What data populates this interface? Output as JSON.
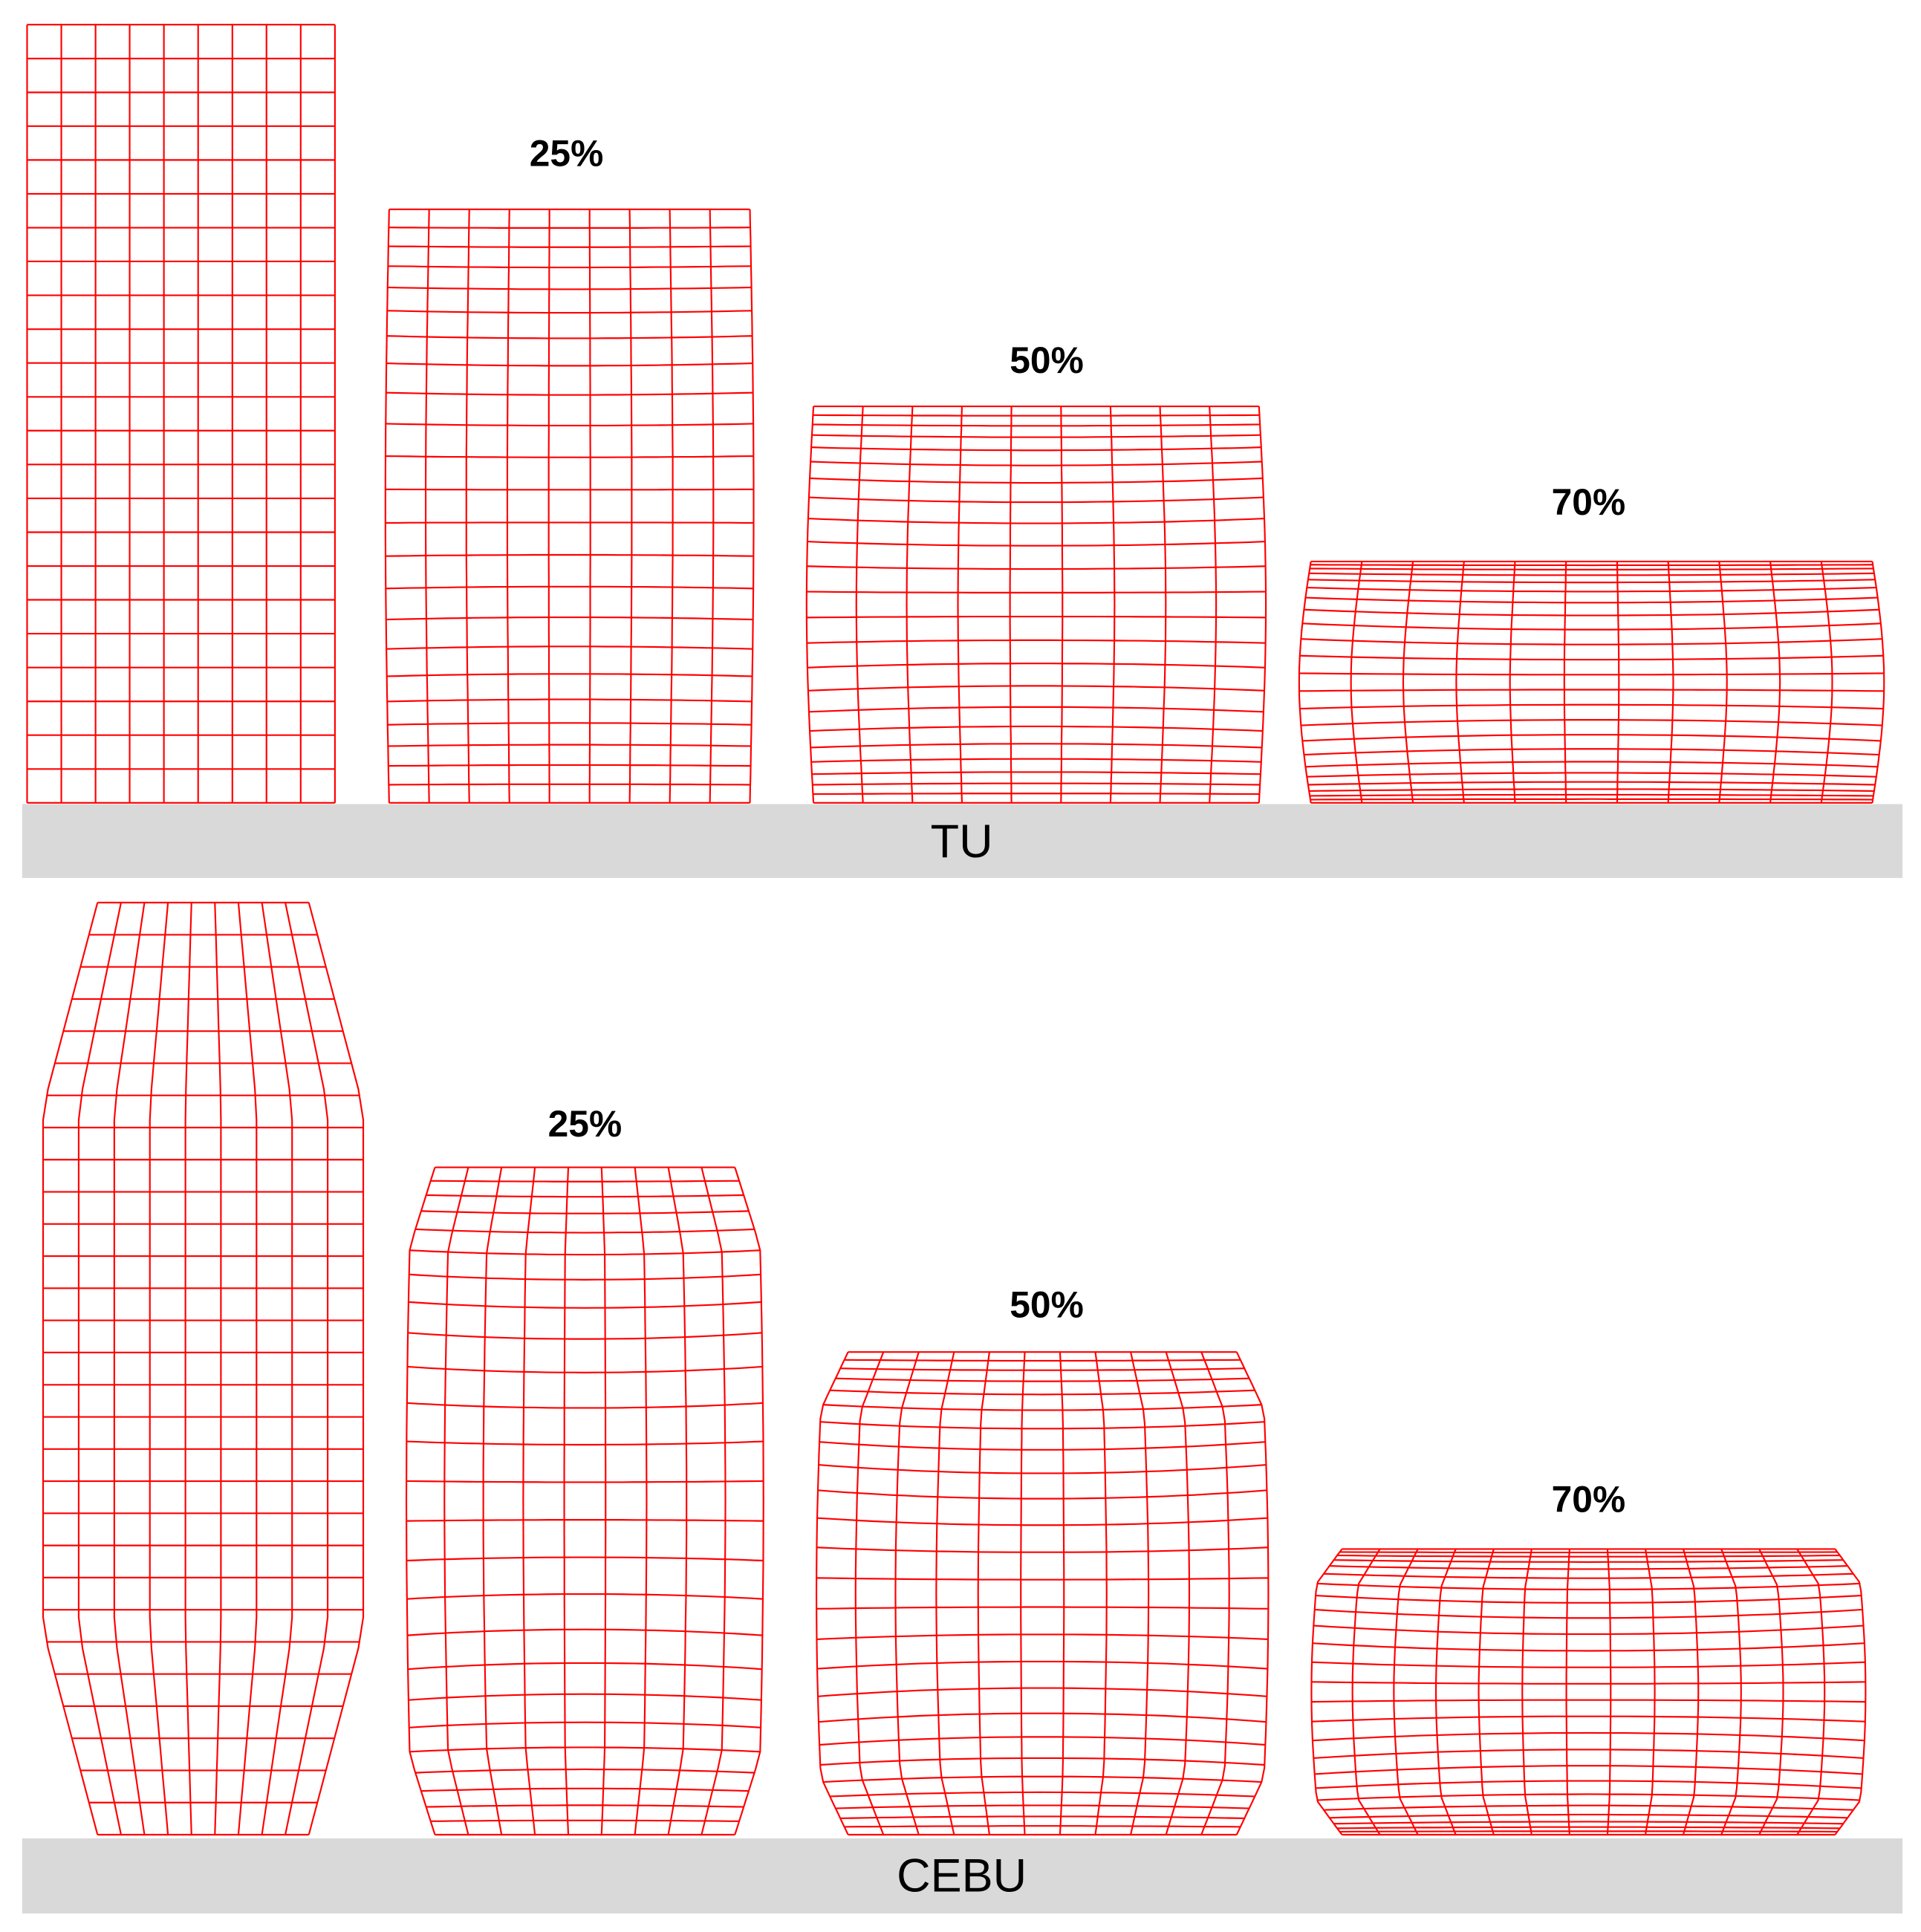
{
  "panels": [
    {
      "label": "TU",
      "compressions": [
        "25%",
        "50%",
        "70%"
      ]
    },
    {
      "label": "CEBU",
      "compressions": [
        "25%",
        "50%",
        "70%"
      ]
    }
  ]
}
